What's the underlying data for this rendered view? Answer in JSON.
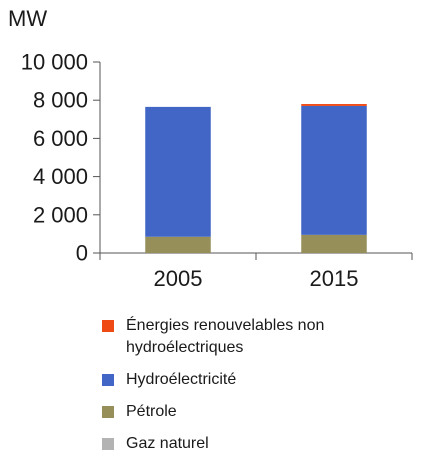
{
  "chart_data": {
    "type": "bar",
    "stacked": true,
    "unit": "MW",
    "categories": [
      "2005",
      "2015"
    ],
    "ylim": [
      0,
      10000
    ],
    "yticks": [
      0,
      2000,
      4000,
      6000,
      8000,
      10000
    ],
    "ytick_labels": [
      "0",
      "2 000",
      "4 000",
      "6 000",
      "8 000",
      "10 000"
    ],
    "grid": false,
    "legend_position": "bottom",
    "series": [
      {
        "name": "Gaz naturel",
        "color": "#b3b3b3",
        "values": [
          0,
          0
        ]
      },
      {
        "name": "Pétrole",
        "color": "#978f5a",
        "values": [
          850,
          950
        ]
      },
      {
        "name": "Hydroélectricité",
        "color": "#4266c6",
        "values": [
          6800,
          6750
        ]
      },
      {
        "name": "Énergies renouvelables non hydroélectriques",
        "color": "#f04a14",
        "values": [
          0,
          100
        ]
      }
    ]
  },
  "legend_order": [
    3,
    2,
    1,
    0
  ]
}
